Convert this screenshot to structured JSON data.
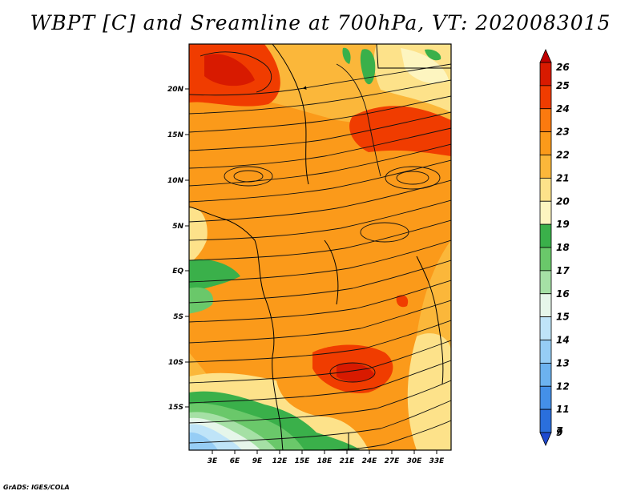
{
  "title": "WBPT [C] and Sreamline at 700hPa, VT: 2020083015",
  "credit": "GrADS: IGES/COLA",
  "lat_labels": [
    "20N",
    "15N",
    "10N",
    "5N",
    "EQ",
    "5S",
    "10S",
    "15S"
  ],
  "lon_labels": [
    "3E",
    "6E",
    "9E",
    "12E",
    "15E",
    "18E",
    "21E",
    "24E",
    "27E",
    "30E",
    "33E"
  ],
  "colorbar": {
    "labels": [
      "26",
      "25",
      "24",
      "23",
      "22",
      "21",
      "20",
      "19",
      "18",
      "17",
      "16",
      "15",
      "14",
      "13",
      "12",
      "11",
      "9",
      "7"
    ],
    "colors": [
      "#c00000",
      "#d81a00",
      "#f03c00",
      "#fb7a0f",
      "#fb9a1a",
      "#fbb73a",
      "#fde28a",
      "#fdf5c0",
      "#3ab04a",
      "#6ac86a",
      "#a5e0a5",
      "#e6f6ea",
      "#bfe4f8",
      "#96cdf5",
      "#6cb2ef",
      "#4490e8",
      "#2a6fdc",
      "#1e4ad0"
    ]
  }
}
